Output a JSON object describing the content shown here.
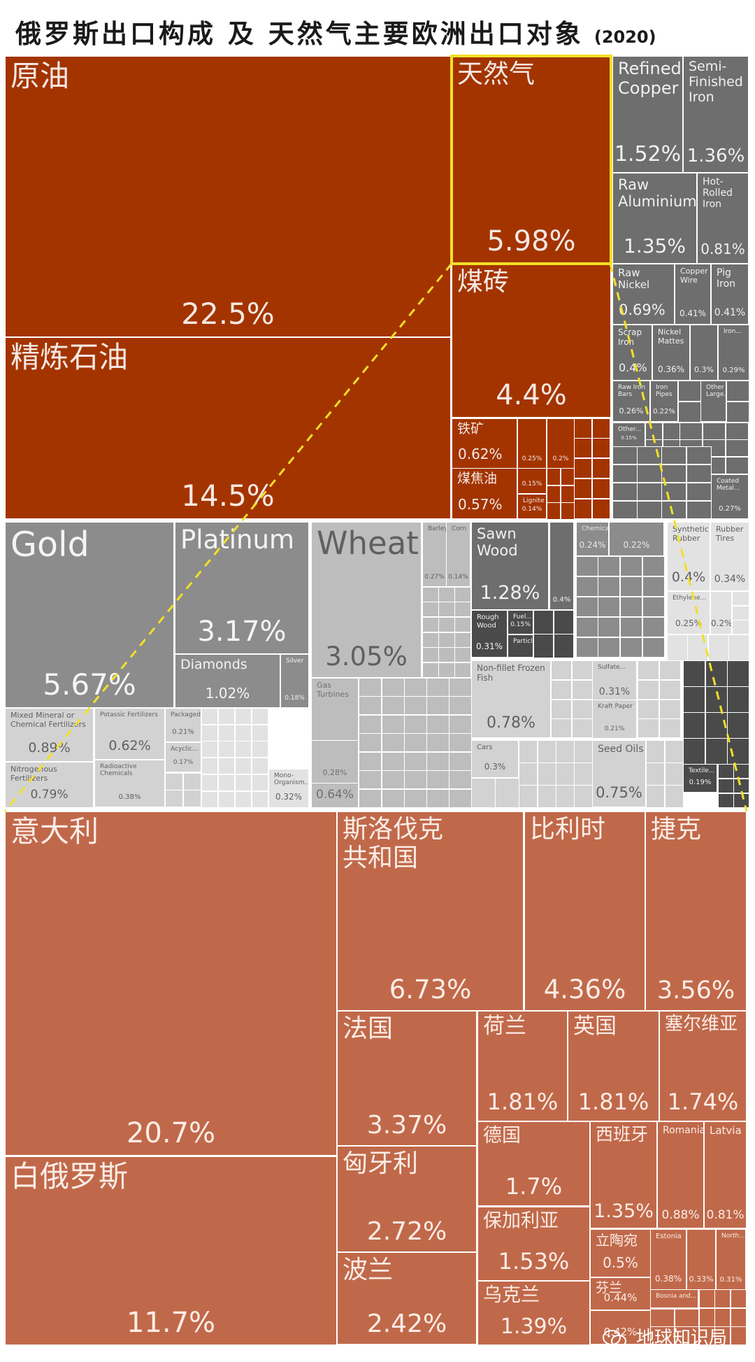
{
  "title": {
    "main": "俄罗斯出口构成  及  天然气主要欧洲出口对象",
    "year": "(2020)"
  },
  "watermark": "地球知识局",
  "colors": {
    "energy": "#A33400",
    "metal": "#6E6E6E",
    "mid": "#8C8C8C",
    "light": "#BDBDBD",
    "lighter": "#D2D2D2",
    "pale": "#E2E2E2",
    "dark": "#4A4A4A",
    "gas_dest": "#C0694A",
    "highlight": "#F2E027"
  },
  "chart_data": [
    {
      "type": "treemap",
      "title": "俄罗斯出口构成",
      "items": [
        {
          "label": "原油",
          "value": 22.5,
          "display": "22.5%"
        },
        {
          "label": "精炼石油",
          "value": 14.5,
          "display": "14.5%"
        },
        {
          "label": "天然气",
          "value": 5.98,
          "display": "5.98%",
          "highlighted": true
        },
        {
          "label": "煤砖",
          "value": 4.4,
          "display": "4.4%"
        },
        {
          "label": "铁矿",
          "value": 0.62,
          "display": "0.62%"
        },
        {
          "label": "煤焦油",
          "value": 0.57,
          "display": "0.57%"
        },
        {
          "label": "",
          "value": 0.25,
          "display": "0.25%"
        },
        {
          "label": "",
          "value": 0.2,
          "display": "0.2%"
        },
        {
          "label": "",
          "value": 0.15,
          "display": "0.15%"
        },
        {
          "label": "Lignite",
          "value": 0.14,
          "display": "0.14%"
        },
        {
          "label": "Refined Copper",
          "value": 1.52,
          "display": "1.52%"
        },
        {
          "label": "Semi-Finished Iron",
          "value": 1.36,
          "display": "1.36%"
        },
        {
          "label": "Raw Aluminium",
          "value": 1.35,
          "display": "1.35%"
        },
        {
          "label": "Hot-Rolled Iron",
          "value": 0.81,
          "display": "0.81%"
        },
        {
          "label": "Raw Nickel",
          "value": 0.69,
          "display": "0.69%"
        },
        {
          "label": "Copper Wire",
          "value": 0.41,
          "display": "0.41%"
        },
        {
          "label": "Pig Iron",
          "value": 0.41,
          "display": "0.41%"
        },
        {
          "label": "Scrap Iron",
          "value": 0.4,
          "display": "0.4%"
        },
        {
          "label": "Nickel Mattes",
          "value": 0.36,
          "display": "0.36%"
        },
        {
          "label": "",
          "value": 0.3,
          "display": "0.3%"
        },
        {
          "label": "Iron...",
          "value": 0.29,
          "display": "0.29%"
        },
        {
          "label": "Raw Iron Bars",
          "value": 0.26,
          "display": "0.26%"
        },
        {
          "label": "Iron Pipes",
          "value": 0.22,
          "display": "0.22%"
        },
        {
          "label": "Other Large...",
          "value": null,
          "display": ""
        },
        {
          "label": "Other...",
          "value": 0.15,
          "display": "0.15%"
        },
        {
          "label": "Coated Metal...",
          "value": 0.27,
          "display": "0.27%"
        },
        {
          "label": "Gold",
          "value": 5.67,
          "display": "5.67%"
        },
        {
          "label": "Platinum",
          "value": 3.17,
          "display": "3.17%"
        },
        {
          "label": "Diamonds",
          "value": 1.02,
          "display": "1.02%"
        },
        {
          "label": "Silver",
          "value": 0.18,
          "display": "0.18%"
        },
        {
          "label": "Wheat",
          "value": 3.05,
          "display": "3.05%"
        },
        {
          "label": "Barley",
          "value": 0.27,
          "display": "0.27%"
        },
        {
          "label": "Corn",
          "value": 0.14,
          "display": "0.14%"
        },
        {
          "label": "Sawn Wood",
          "value": 1.28,
          "display": "1.28%"
        },
        {
          "label": "",
          "value": 0.4,
          "display": "0.4%"
        },
        {
          "label": "Rough Wood",
          "value": 0.31,
          "display": "0.31%"
        },
        {
          "label": "Fuel...",
          "value": 0.15,
          "display": "0.15%"
        },
        {
          "label": "Particle...",
          "value": null,
          "display": ""
        },
        {
          "label": "Chemical...",
          "value": 0.24,
          "display": "0.24%"
        },
        {
          "label": "",
          "value": 0.22,
          "display": "0.22%"
        },
        {
          "label": "Synthetic Rubber",
          "value": 0.4,
          "display": "0.4%"
        },
        {
          "label": "Rubber Tires",
          "value": 0.34,
          "display": "0.34%"
        },
        {
          "label": "Ethylene...",
          "value": 0.25,
          "display": "0.25%"
        },
        {
          "label": "",
          "value": 0.2,
          "display": "0.2%"
        },
        {
          "label": "Gas Turbines",
          "value": 0.64,
          "display": "0.64%"
        },
        {
          "label": "",
          "value": 0.28,
          "display": "0.28%"
        },
        {
          "label": "Non-fillet Frozen Fish",
          "value": 0.78,
          "display": "0.78%"
        },
        {
          "label": "Sulfate...",
          "value": 0.31,
          "display": "0.31%"
        },
        {
          "label": "Kraft Paper",
          "value": 0.21,
          "display": "0.21%"
        },
        {
          "label": "Cars",
          "value": 0.3,
          "display": "0.3%"
        },
        {
          "label": "Seed Oils",
          "value": 0.75,
          "display": "0.75%"
        },
        {
          "label": "Textile...",
          "value": 0.19,
          "display": "0.19%"
        },
        {
          "label": "Mixed Mineral or Chemical Fertilizers",
          "value": 0.89,
          "display": "0.89%"
        },
        {
          "label": "Nitrogenous Fertilizers",
          "value": 0.79,
          "display": "0.79%"
        },
        {
          "label": "Potassic Fertilizers",
          "value": 0.62,
          "display": "0.62%"
        },
        {
          "label": "Radioactive Chemicals",
          "value": 0.38,
          "display": "0.38%"
        },
        {
          "label": "Packaged...",
          "value": 0.21,
          "display": "0.21%"
        },
        {
          "label": "Acyclic...",
          "value": 0.17,
          "display": "0.17%"
        },
        {
          "label": "Mono-Organism...",
          "value": 0.32,
          "display": "0.32%"
        }
      ]
    },
    {
      "type": "treemap",
      "title": "天然气主要欧洲出口对象",
      "items": [
        {
          "label": "意大利",
          "value": 20.7,
          "display": "20.7%"
        },
        {
          "label": "白俄罗斯",
          "value": 11.7,
          "display": "11.7%"
        },
        {
          "label": "斯洛伐克\n共和国",
          "value": 6.73,
          "display": "6.73%"
        },
        {
          "label": "比利时",
          "value": 4.36,
          "display": "4.36%"
        },
        {
          "label": "捷克",
          "value": 3.56,
          "display": "3.56%"
        },
        {
          "label": "法国",
          "value": 3.37,
          "display": "3.37%"
        },
        {
          "label": "匈牙利",
          "value": 2.72,
          "display": "2.72%"
        },
        {
          "label": "波兰",
          "value": 2.42,
          "display": "2.42%"
        },
        {
          "label": "荷兰",
          "value": 1.81,
          "display": "1.81%"
        },
        {
          "label": "英国",
          "value": 1.81,
          "display": "1.81%"
        },
        {
          "label": "塞尔维亚",
          "value": 1.74,
          "display": "1.74%"
        },
        {
          "label": "德国",
          "value": 1.7,
          "display": "1.7%"
        },
        {
          "label": "保加利亚",
          "value": 1.53,
          "display": "1.53%"
        },
        {
          "label": "乌克兰",
          "value": 1.39,
          "display": "1.39%"
        },
        {
          "label": "西班牙",
          "value": 1.35,
          "display": "1.35%"
        },
        {
          "label": "Romania",
          "value": 0.88,
          "display": "0.88%"
        },
        {
          "label": "Latvia",
          "value": 0.81,
          "display": "0.81%"
        },
        {
          "label": "立陶宛",
          "value": 0.5,
          "display": "0.5%"
        },
        {
          "label": "芬兰",
          "value": 0.44,
          "display": "0.44%"
        },
        {
          "label": "",
          "value": 0.42,
          "display": "0.42%"
        },
        {
          "label": "Estonia",
          "value": 0.38,
          "display": "0.38%"
        },
        {
          "label": "",
          "value": 0.33,
          "display": "0.33%"
        },
        {
          "label": "North...",
          "value": 0.31,
          "display": "0.31%"
        },
        {
          "label": "Bosnia and...",
          "value": null,
          "display": ""
        }
      ]
    }
  ]
}
